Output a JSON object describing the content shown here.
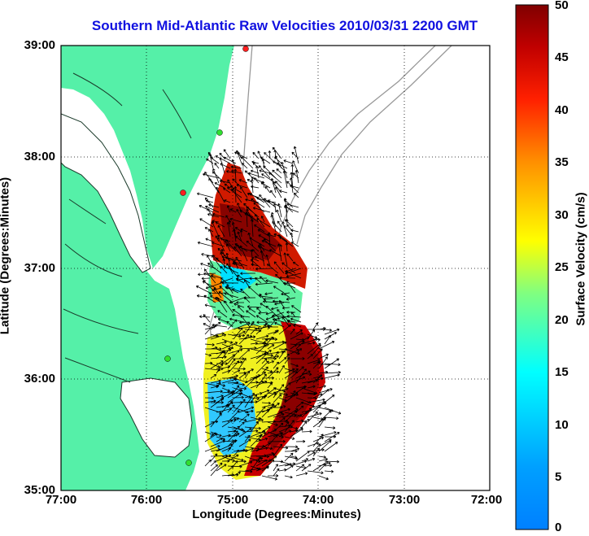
{
  "title": "Southern Mid-Atlantic Raw Velocities 2010/03/31 2200 GMT",
  "xlabel": "Longitude (Degrees:Minutes)",
  "ylabel": "Latitude (Degrees:Minutes)",
  "colorbar_label": "Surface Velocity (cm/s)",
  "x_ticks": [
    "77:00",
    "76:00",
    "75:00",
    "74:00",
    "73:00",
    "72:00"
  ],
  "y_ticks": [
    "39:00",
    "38:00",
    "37:00",
    "36:00",
    "35:00"
  ],
  "colorbar_ticks": [
    "50",
    "45",
    "40",
    "35",
    "30",
    "25",
    "20",
    "15",
    "10",
    "5",
    "0"
  ],
  "map": {
    "lon_range": [
      -77.0,
      -72.0
    ],
    "lat_range": [
      35.0,
      39.0
    ],
    "grid": true,
    "colorbar_range": [
      0,
      50
    ],
    "colormap": "jet",
    "land_color": "#55f0a8",
    "title_color": "#1010e0"
  }
}
